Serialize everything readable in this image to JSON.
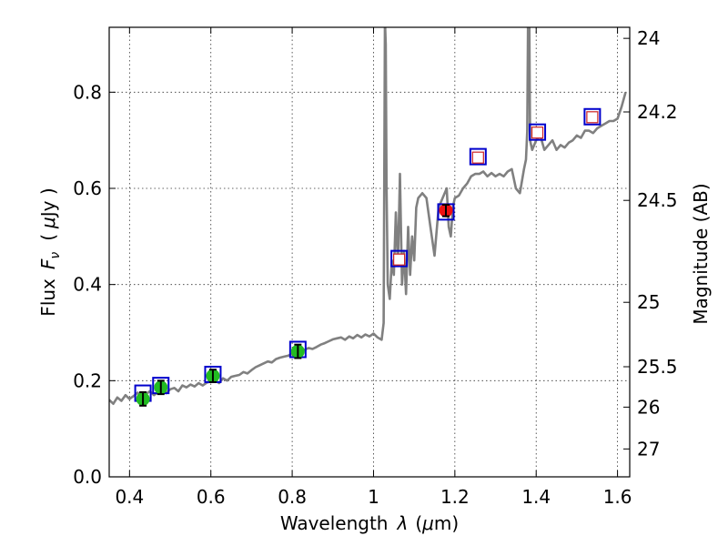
{
  "chart_data": {
    "type": "line",
    "xlabel_prefix": "Wavelength",
    "xlabel_sym": "λ",
    "xlabel_unit_open": "(",
    "xlabel_unit_mu": "μ",
    "xlabel_unit_rest": "m)",
    "ylabel_prefix": "Flux",
    "ylabel_sym": "F",
    "ylabel_sub": "ν",
    "ylabel_unit_open": "(",
    "ylabel_unit_mu": "μ",
    "ylabel_unit_rest": "Jy )",
    "y2label": "Magnitude (AB)",
    "xlim": [
      0.35,
      1.63
    ],
    "ylim": [
      0.0,
      0.935
    ],
    "xticks": [
      0.4,
      0.6,
      0.8,
      1.0,
      1.2,
      1.4,
      1.6
    ],
    "xtick_labels": [
      "0.4",
      "0.6",
      "0.8",
      "1",
      "1.2",
      "1.4",
      "1.6"
    ],
    "yticks": [
      0.0,
      0.2,
      0.4,
      0.6,
      0.8
    ],
    "ytick_labels": [
      "0.0",
      "0.2",
      "0.4",
      "0.6",
      "0.8"
    ],
    "y2ticks": [
      {
        "label": "24",
        "flux": 0.912
      },
      {
        "label": "24.2",
        "flux": 0.759
      },
      {
        "label": "24.5",
        "flux": 0.575
      },
      {
        "label": "25",
        "flux": 0.363
      },
      {
        "label": "25.5",
        "flux": 0.229
      },
      {
        "label": "26",
        "flux": 0.145
      },
      {
        "label": "27",
        "flux": 0.058
      }
    ],
    "grid": true,
    "colors": {
      "template": "#808080",
      "model_box": "#0000cc",
      "observed_optical": "#22bb22",
      "observed_nir": "#ee1111",
      "predicted_box": "#cc2222"
    },
    "template_spectrum": {
      "x": [
        0.35,
        0.36,
        0.37,
        0.38,
        0.39,
        0.4,
        0.41,
        0.42,
        0.43,
        0.44,
        0.45,
        0.46,
        0.47,
        0.48,
        0.49,
        0.5,
        0.51,
        0.52,
        0.53,
        0.54,
        0.55,
        0.56,
        0.57,
        0.58,
        0.59,
        0.6,
        0.61,
        0.62,
        0.63,
        0.64,
        0.65,
        0.66,
        0.67,
        0.68,
        0.69,
        0.7,
        0.71,
        0.72,
        0.73,
        0.74,
        0.75,
        0.76,
        0.77,
        0.78,
        0.79,
        0.8,
        0.81,
        0.82,
        0.83,
        0.84,
        0.85,
        0.86,
        0.87,
        0.88,
        0.89,
        0.9,
        0.91,
        0.92,
        0.93,
        0.94,
        0.95,
        0.96,
        0.97,
        0.98,
        0.99,
        1.0,
        1.01,
        1.02,
        1.025,
        1.028,
        1.03,
        1.032,
        1.035,
        1.04,
        1.045,
        1.05,
        1.055,
        1.06,
        1.065,
        1.07,
        1.075,
        1.08,
        1.085,
        1.09,
        1.095,
        1.1,
        1.105,
        1.11,
        1.12,
        1.13,
        1.14,
        1.15,
        1.16,
        1.17,
        1.18,
        1.185,
        1.19,
        1.195,
        1.2,
        1.21,
        1.22,
        1.23,
        1.24,
        1.25,
        1.26,
        1.27,
        1.28,
        1.29,
        1.3,
        1.31,
        1.32,
        1.33,
        1.34,
        1.35,
        1.36,
        1.37,
        1.375,
        1.378,
        1.38,
        1.383,
        1.385,
        1.39,
        1.395,
        1.4,
        1.41,
        1.42,
        1.43,
        1.44,
        1.45,
        1.46,
        1.47,
        1.48,
        1.49,
        1.5,
        1.51,
        1.52,
        1.53,
        1.54,
        1.55,
        1.56,
        1.57,
        1.58,
        1.59,
        1.6,
        1.61,
        1.62
      ],
      "y": [
        0.16,
        0.152,
        0.165,
        0.158,
        0.17,
        0.162,
        0.168,
        0.175,
        0.165,
        0.172,
        0.178,
        0.17,
        0.176,
        0.18,
        0.174,
        0.182,
        0.185,
        0.178,
        0.19,
        0.186,
        0.192,
        0.188,
        0.195,
        0.19,
        0.196,
        0.198,
        0.202,
        0.195,
        0.205,
        0.2,
        0.208,
        0.21,
        0.212,
        0.218,
        0.215,
        0.222,
        0.228,
        0.232,
        0.236,
        0.24,
        0.238,
        0.245,
        0.248,
        0.25,
        0.252,
        0.256,
        0.26,
        0.262,
        0.264,
        0.268,
        0.266,
        0.27,
        0.275,
        0.278,
        0.282,
        0.286,
        0.288,
        0.29,
        0.285,
        0.292,
        0.288,
        0.295,
        0.29,
        0.296,
        0.292,
        0.298,
        0.29,
        0.285,
        0.32,
        0.95,
        0.9,
        0.6,
        0.4,
        0.37,
        0.45,
        0.42,
        0.55,
        0.44,
        0.63,
        0.4,
        0.47,
        0.38,
        0.52,
        0.42,
        0.5,
        0.45,
        0.56,
        0.58,
        0.59,
        0.58,
        0.52,
        0.46,
        0.56,
        0.58,
        0.6,
        0.52,
        0.5,
        0.56,
        0.58,
        0.585,
        0.6,
        0.61,
        0.625,
        0.63,
        0.63,
        0.635,
        0.625,
        0.632,
        0.625,
        0.63,
        0.625,
        0.635,
        0.64,
        0.6,
        0.59,
        0.64,
        0.66,
        0.72,
        0.96,
        0.97,
        0.7,
        0.68,
        0.69,
        0.7,
        0.71,
        0.68,
        0.69,
        0.7,
        0.68,
        0.69,
        0.685,
        0.695,
        0.7,
        0.71,
        0.705,
        0.72,
        0.72,
        0.715,
        0.725,
        0.73,
        0.735,
        0.74,
        0.74,
        0.745,
        0.77,
        0.8
      ]
    },
    "series": [
      {
        "name": "model",
        "marker": "open-square",
        "x": [
          0.433,
          0.477,
          0.605,
          0.814,
          1.063,
          1.178,
          1.257,
          1.403,
          1.538
        ],
        "y": [
          0.174,
          0.19,
          0.213,
          0.265,
          0.454,
          0.551,
          0.666,
          0.717,
          0.749
        ]
      },
      {
        "name": "observed-optical",
        "marker": "filled-circle",
        "x": [
          0.433,
          0.477,
          0.605,
          0.814
        ],
        "y": [
          0.162,
          0.186,
          0.21,
          0.261
        ],
        "yerr": [
          0.014,
          0.014,
          0.013,
          0.014
        ]
      },
      {
        "name": "observed-nir",
        "marker": "filled-circle",
        "x": [
          1.178
        ],
        "y": [
          0.554
        ],
        "yerr": [
          0.012
        ]
      },
      {
        "name": "predicted",
        "marker": "small-open-square",
        "x": [
          1.063,
          1.257,
          1.403,
          1.538
        ],
        "y": [
          0.452,
          0.664,
          0.716,
          0.748
        ]
      }
    ]
  }
}
